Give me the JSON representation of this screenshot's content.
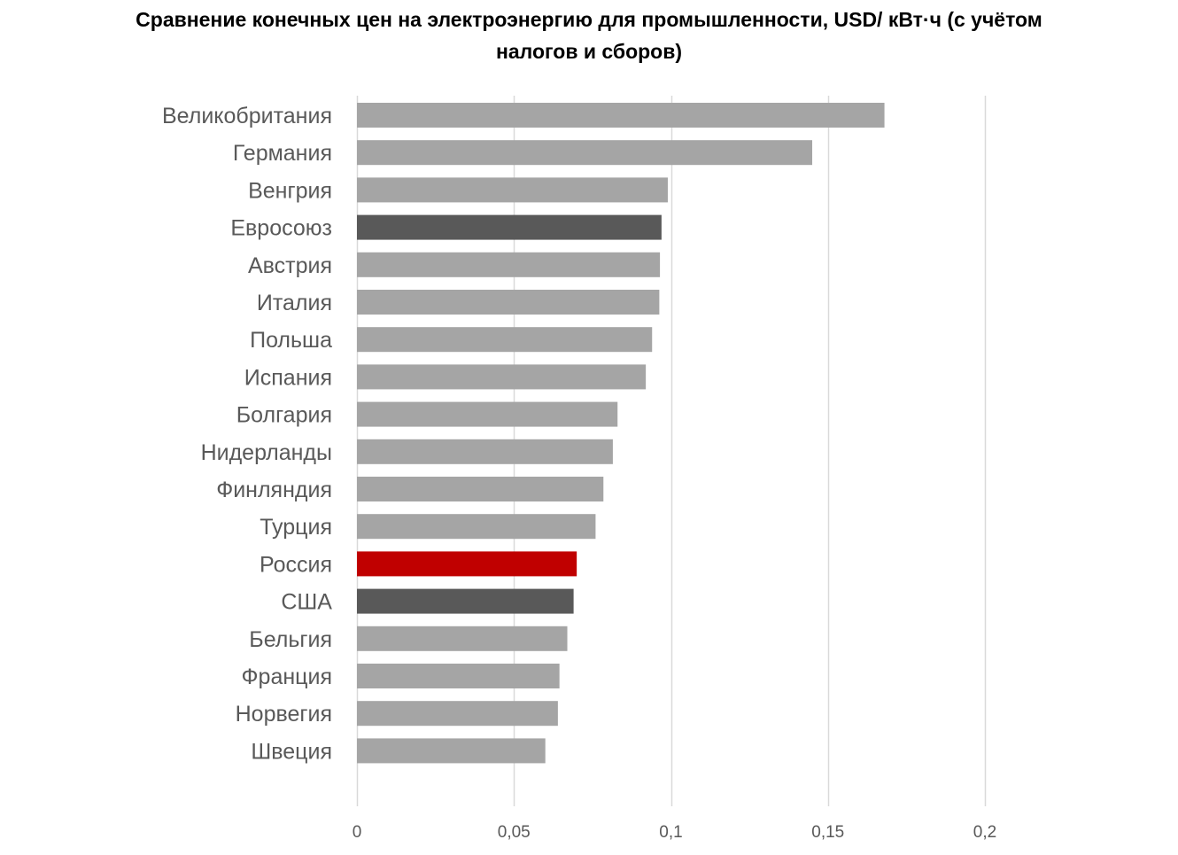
{
  "chart_data": {
    "type": "bar",
    "orientation": "horizontal",
    "title_lines": [
      "Сравнение конечных цен на электроэнергию для промышленности, USD/ кВт·ч (с учётом",
      "налогов и сборов)"
    ],
    "xlabel": "",
    "ylabel": "",
    "xlim": [
      0,
      0.2
    ],
    "grid": true,
    "legend": "none",
    "x_ticks": [
      0,
      0.05,
      0.1,
      0.15,
      0.2
    ],
    "x_tick_labels": [
      "0",
      "0,05",
      "0,1",
      "0,15",
      "0,2"
    ],
    "categories": [
      "Великобритания",
      "Германия",
      "Венгрия",
      "Евросоюз",
      "Австрия",
      "Италия",
      "Польша",
      "Испания",
      "Болгария",
      "Нидерланды",
      "Финляндия",
      "Турция",
      "Россия",
      "США",
      "Бельгия",
      "Франция",
      "Норвегия",
      "Швеция"
    ],
    "values": [
      0.168,
      0.145,
      0.099,
      0.097,
      0.0965,
      0.0963,
      0.094,
      0.092,
      0.083,
      0.0815,
      0.0785,
      0.076,
      0.07,
      0.069,
      0.067,
      0.0645,
      0.064,
      0.06
    ],
    "bar_colors": [
      "#a5a5a5",
      "#a5a5a5",
      "#a5a5a5",
      "#595959",
      "#a5a5a5",
      "#a5a5a5",
      "#a5a5a5",
      "#a5a5a5",
      "#a5a5a5",
      "#a5a5a5",
      "#a5a5a5",
      "#a5a5a5",
      "#c00000",
      "#595959",
      "#a5a5a5",
      "#a5a5a5",
      "#a5a5a5",
      "#a5a5a5"
    ]
  }
}
